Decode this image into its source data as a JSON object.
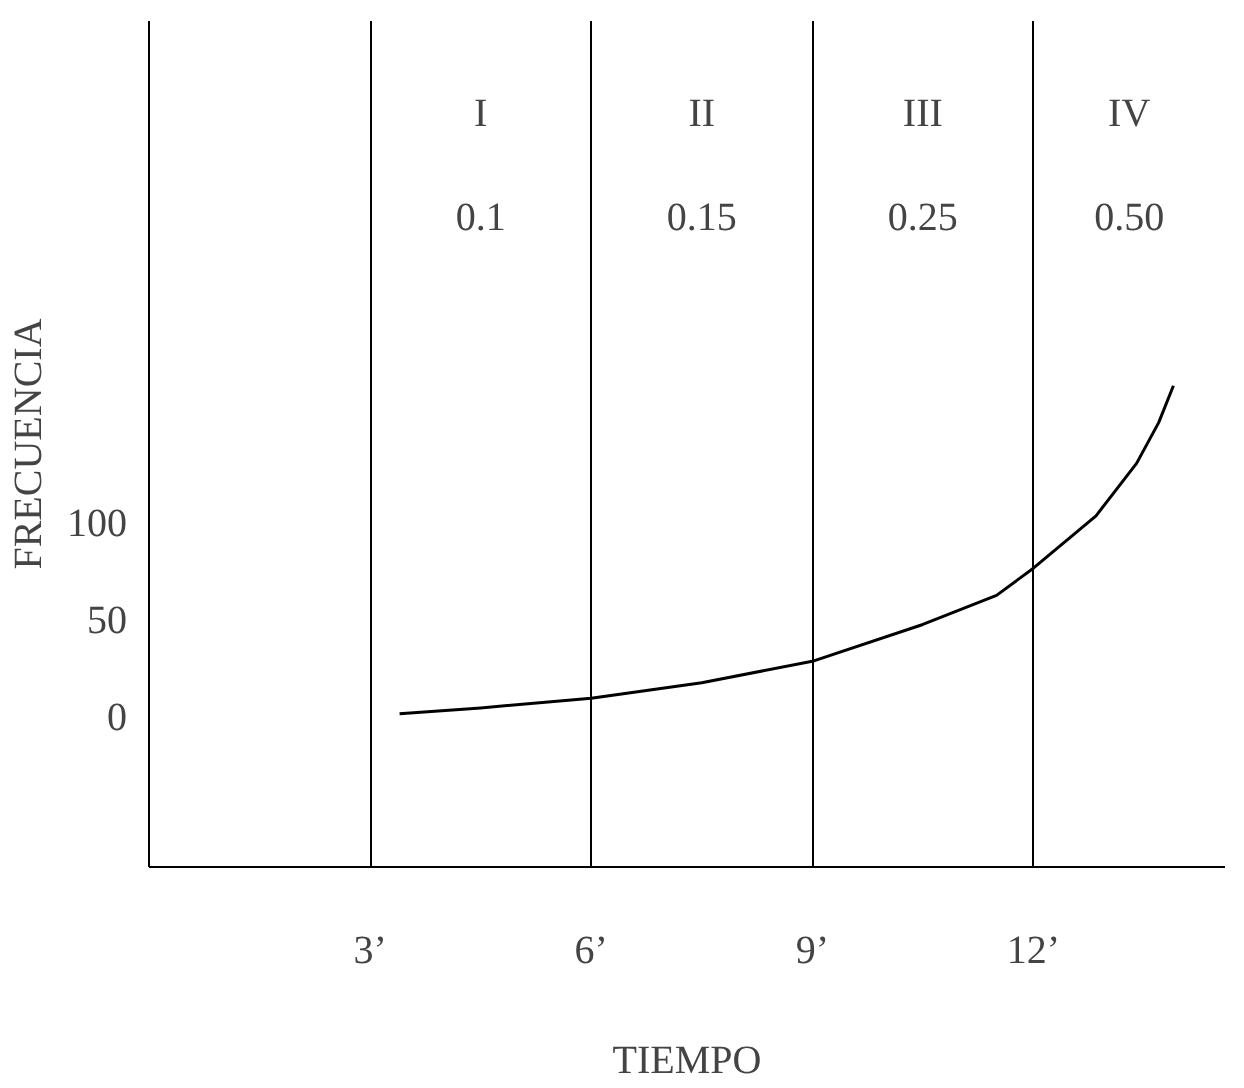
{
  "chart_data": {
    "type": "line",
    "xlabel": "TIEMPO",
    "ylabel": "FRECUENCIA",
    "x": [
      3.4,
      4.5,
      6,
      7.5,
      9,
      10.5,
      11.5,
      12,
      12.85,
      13.4,
      13.7,
      13.9
    ],
    "series": [
      {
        "color": "#000000",
        "values": [
          1,
          4,
          9,
          17,
          28,
          47,
          62,
          76,
          103,
          130,
          151,
          170
        ]
      }
    ],
    "xlim": [
      0,
      14.6
    ],
    "ylim": [
      -78,
      358
    ],
    "xticks": [
      {
        "value": 3,
        "label": "3’"
      },
      {
        "value": 6,
        "label": "6’"
      },
      {
        "value": 9,
        "label": "9’"
      },
      {
        "value": 12,
        "label": "12’"
      }
    ],
    "yticks": [
      0,
      50,
      100
    ],
    "grid": "x",
    "marker": "none",
    "line_style": "solid",
    "annotations": [
      "I",
      "II",
      "III",
      "IV",
      "0.1",
      "0.15",
      "0.25",
      "0.50"
    ]
  }
}
